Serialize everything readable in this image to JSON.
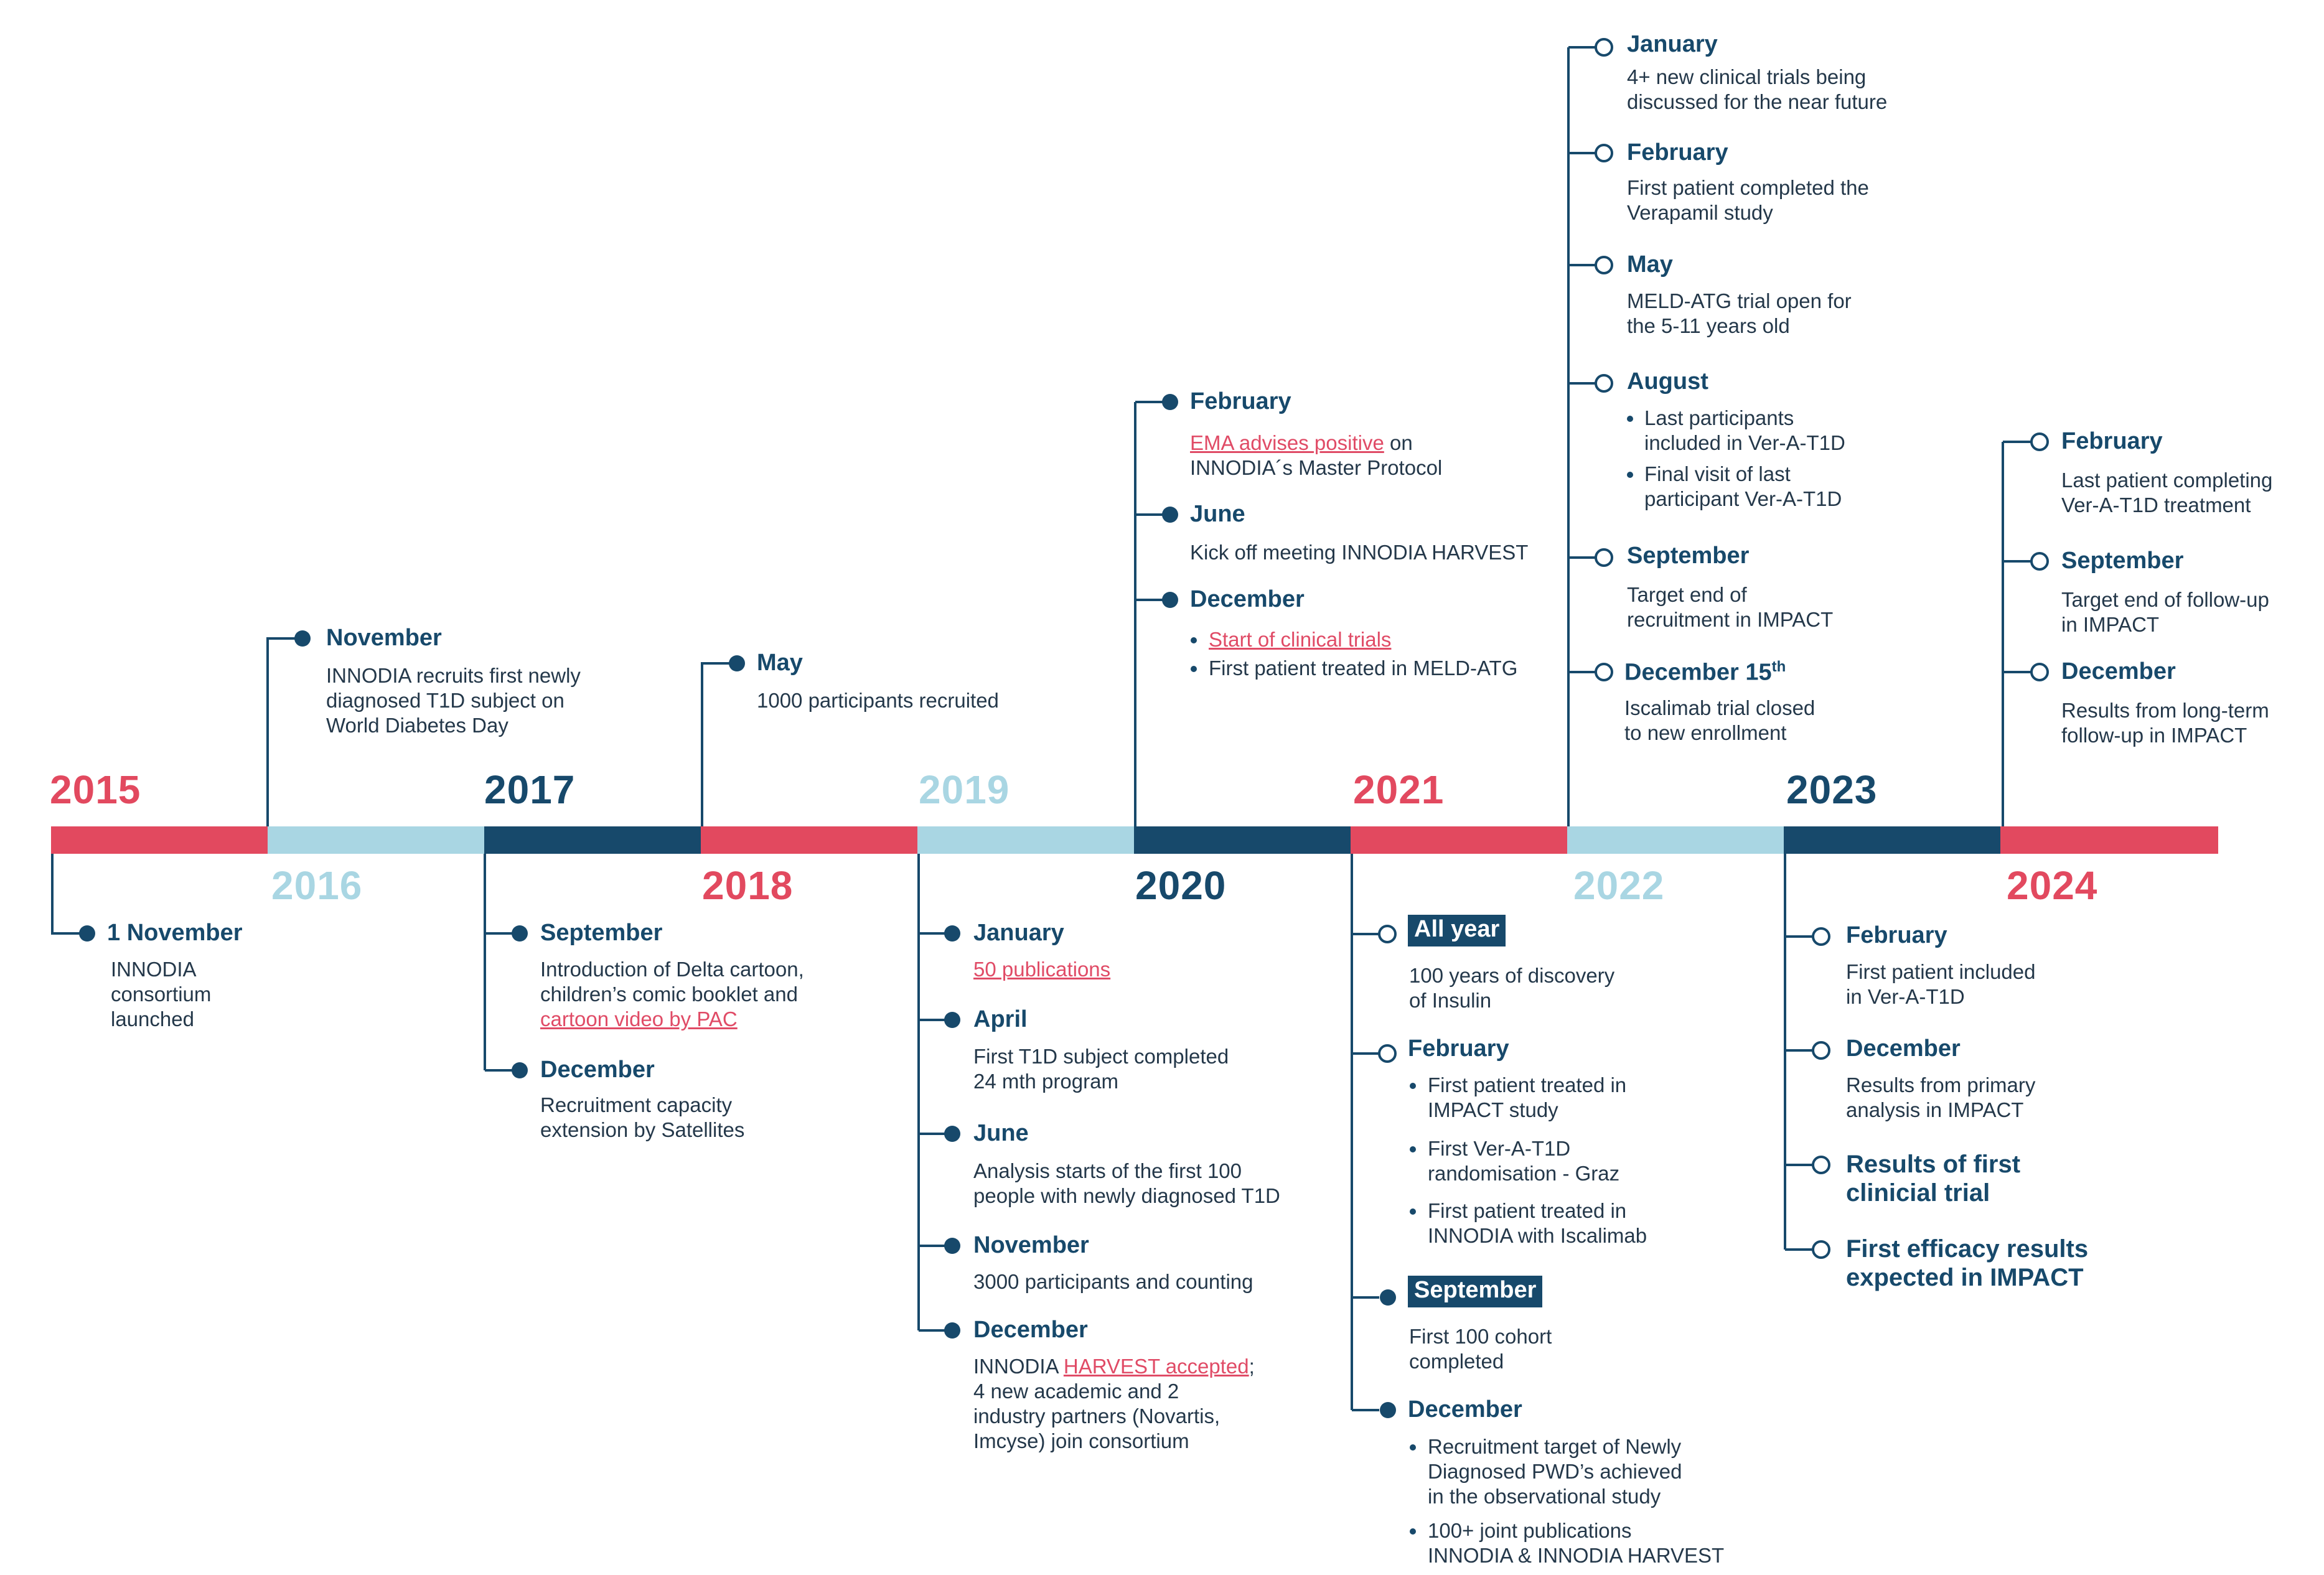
{
  "colors": {
    "red": "#e2495f",
    "light": "#a9d6e3",
    "navy": "#17496b",
    "link": "#e04b66"
  },
  "years": [
    "2015",
    "2016",
    "2017",
    "2018",
    "2019",
    "2020",
    "2021",
    "2022",
    "2023",
    "2024"
  ],
  "y2015": {
    "m1": "1 November",
    "t1": "INNODIA\nconsortium\nlaunched"
  },
  "y2016": {
    "m1": "November",
    "t1": "INNODIA recruits first newly\ndiagnosed T1D subject on\nWorld Diabetes Day"
  },
  "y2017": {
    "m1": "September",
    "t1a": "Introduction of Delta cartoon,\nchildren’s comic booklet and",
    "t1b": "cartoon video by PAC",
    "m2": "December",
    "t2": "Recruitment capacity\nextension by Satellites"
  },
  "y2018": {
    "m1": "May",
    "t1": "1000 participants recruited"
  },
  "y2019": {
    "m1": "January",
    "t1": "50 publications",
    "m2": "April",
    "t2": "First T1D subject completed\n24 mth program",
    "m3": "June",
    "t3": "Analysis starts of the first 100\npeople with newly diagnosed T1D",
    "m4": "November",
    "t4": "3000 participants and counting",
    "m5": "December",
    "t5a": "INNODIA ",
    "t5b": "HARVEST accepted",
    "t5c": ";",
    "t5d": "4 new academic and 2\nindustry partners (Novartis,\nImcyse) join consortium"
  },
  "y2020": {
    "m1": "February",
    "t1a": "EMA advises positive",
    "t1b": " on",
    "t1c": "INNODIA´s Master Protocol",
    "m2": "June",
    "t2": "Kick off meeting INNODIA HARVEST",
    "m3": "December",
    "b1": "Start of clinical trials",
    "b2": "First patient treated in MELD-ATG"
  },
  "y2021": {
    "m1": "All year",
    "t1": "100 years of discovery\nof Insulin",
    "m2": "February",
    "b1": "First patient treated in\nIMPACT study",
    "b2": "First Ver-A-T1D\nrandomisation - Graz",
    "b3": "First patient treated in\nINNODIA with Iscalimab",
    "m3": "September",
    "t3": "First 100 cohort\ncompleted",
    "m4": "December",
    "b4": "Recruitment target of Newly\nDiagnosed PWD’s achieved\nin the observational study",
    "b5": "100+ joint publications\nINNODIA & INNODIA HARVEST"
  },
  "y2022": {
    "m1": "January",
    "t1": "4+ new clinical trials being\ndiscussed for the near future",
    "m2": "February",
    "t2": "First patient completed the\nVerapamil study",
    "m3": "May",
    "t3": "MELD-ATG trial open for\nthe 5-11 years old",
    "m4": "August",
    "b1": "Last participants\nincluded in Ver-A-T1D",
    "b2": "Final visit of last\nparticipant Ver-A-T1D",
    "m5": "September",
    "t5": "Target end of\nrecruitment in IMPACT",
    "m6": "December 15",
    "m6sup": "th",
    "t6": "Iscalimab trial closed\nto new enrollment"
  },
  "y2023": {
    "m1": "February",
    "t1": "First patient included\nin Ver-A-T1D",
    "m2": "December",
    "t2": "Results from primary\nanalysis in IMPACT",
    "m3": "Results of first\nclinicial trial",
    "m4": "First efficacy results\nexpected in IMPACT"
  },
  "y2024": {
    "m1": "February",
    "t1": "Last patient completing\nVer-A-T1D treatment",
    "m2": "September",
    "t2": "Target end of follow-up\nin IMPACT",
    "m3": "December",
    "t3": "Results from long-term\nfollow-up in IMPACT"
  }
}
